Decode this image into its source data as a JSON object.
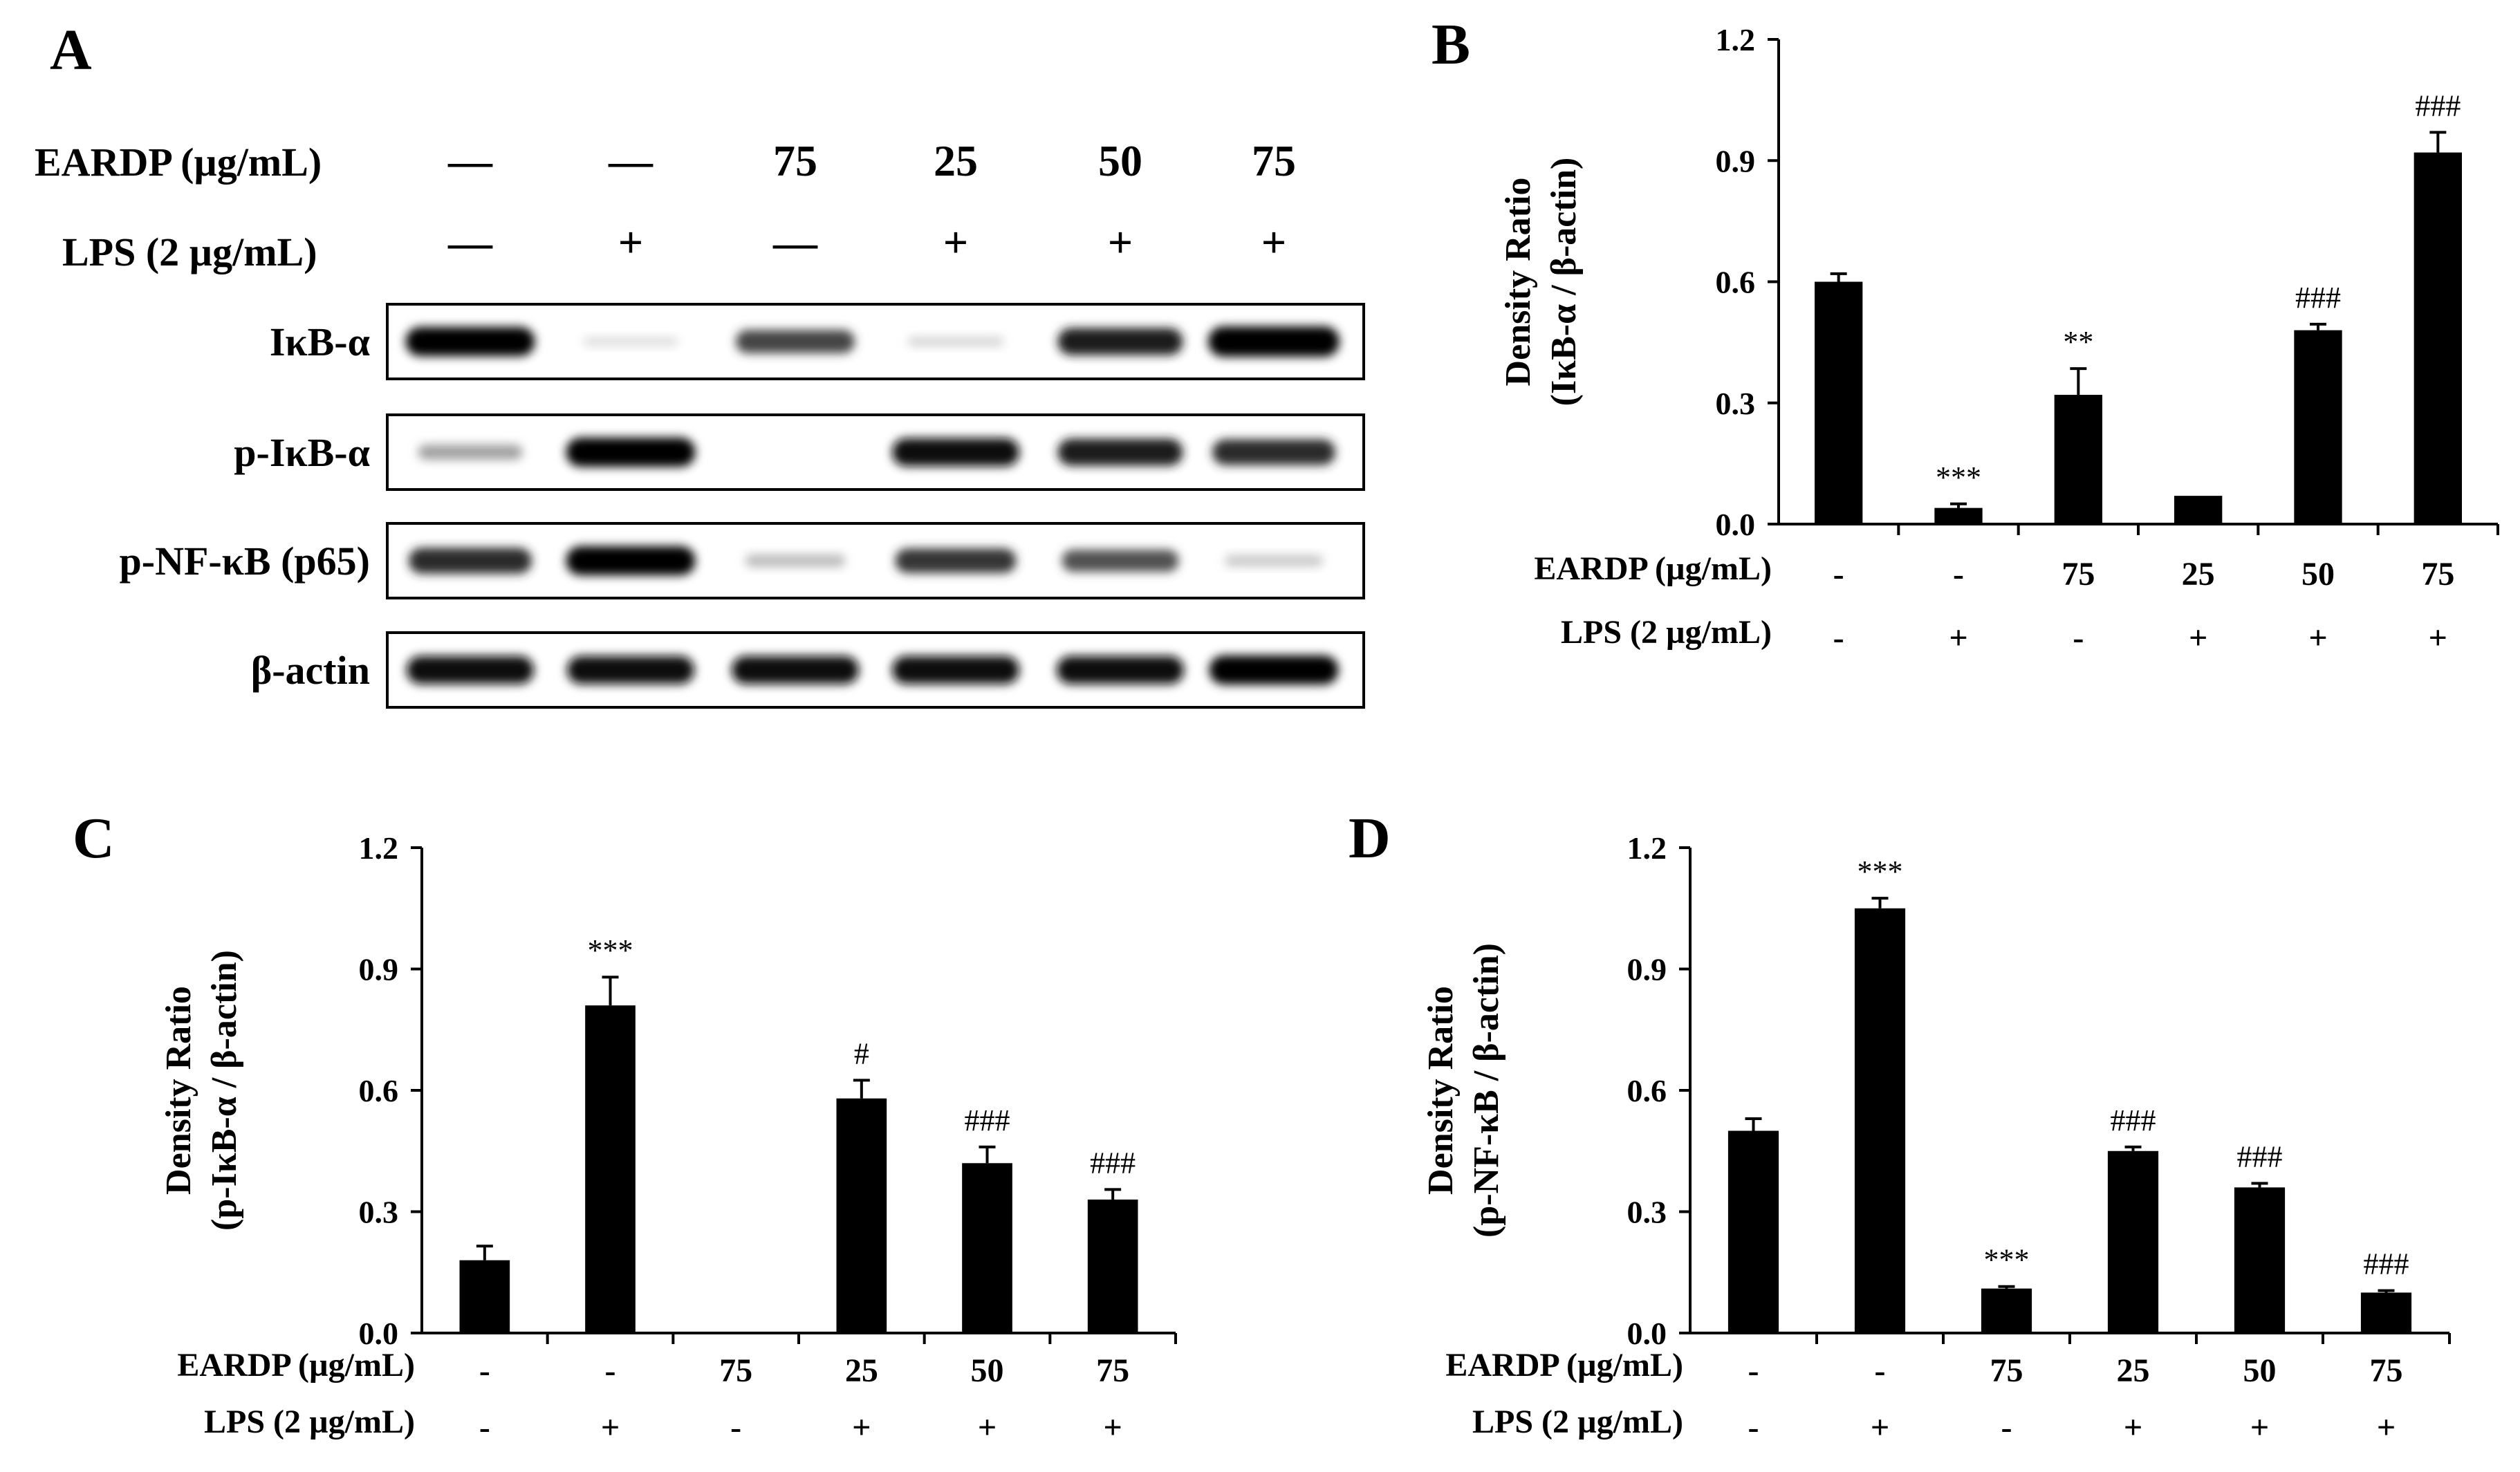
{
  "panels": {
    "A": {
      "letter": "A",
      "treatments": {
        "eardp_label": "EARDP (µg/mL)",
        "lps_label": "LPS (2  µg/mL)",
        "eardp": [
          "—",
          "—",
          "75",
          "25",
          "50",
          "75"
        ],
        "lps": [
          "—",
          "+",
          "—",
          "+",
          "+",
          "+"
        ]
      },
      "blots": [
        {
          "label": "IκB-α",
          "intensity": [
            0.95,
            0.12,
            0.7,
            0.15,
            0.85,
            1.0
          ]
        },
        {
          "label": "p-IκB-α",
          "intensity": [
            0.35,
            0.95,
            0.0,
            0.9,
            0.85,
            0.8
          ]
        },
        {
          "label": "p-NF-κB (p65)",
          "intensity": [
            0.8,
            0.95,
            0.25,
            0.75,
            0.65,
            0.2
          ]
        },
        {
          "label": "β-actin",
          "intensity": [
            0.9,
            0.9,
            0.9,
            0.9,
            0.9,
            0.95
          ]
        }
      ]
    }
  },
  "chart_data": [
    {
      "panel": "B",
      "type": "bar",
      "ylabel_line1": "Density  Ratio",
      "ylabel_line2": "(IκB-α / β-actin)",
      "ylim": [
        0,
        1.2
      ],
      "yticks": [
        "0.0",
        "0.3",
        "0.6",
        "0.9",
        "1.2"
      ],
      "values": [
        0.6,
        0.04,
        0.32,
        0.07,
        0.48,
        0.92
      ],
      "errors": [
        0.02,
        0.01,
        0.065,
        0.0,
        0.015,
        0.05
      ],
      "annotations": [
        "",
        "***",
        "**",
        "",
        "###",
        "###"
      ],
      "eardp_label": "EARDP (µg/mL)",
      "lps_label": "LPS (2 µg/mL)",
      "eardp": [
        "-",
        "-",
        "75",
        "25",
        "50",
        "75"
      ],
      "lps": [
        "-",
        "+",
        "-",
        "+",
        "+",
        "+"
      ],
      "color": "#000000"
    },
    {
      "panel": "C",
      "type": "bar",
      "ylabel_line1": "Density  Ratio",
      "ylabel_line2": "(p-IκB-α / β-actin)",
      "ylim": [
        0,
        1.2
      ],
      "yticks": [
        "0.0",
        "0.3",
        "0.6",
        "0.9",
        "1.2"
      ],
      "values": [
        0.18,
        0.81,
        0.0,
        0.58,
        0.42,
        0.33
      ],
      "errors": [
        0.035,
        0.07,
        0.0,
        0.045,
        0.04,
        0.025
      ],
      "annotations": [
        "",
        "***",
        "",
        "#",
        "###",
        "###"
      ],
      "eardp_label": "EARDP (µg/mL)",
      "lps_label": "LPS (2 µg/mL)",
      "eardp": [
        "-",
        "-",
        "75",
        "25",
        "50",
        "75"
      ],
      "lps": [
        "-",
        "+",
        "-",
        "+",
        "+",
        "+"
      ],
      "color": "#000000"
    },
    {
      "panel": "D",
      "type": "bar",
      "ylabel_line1": "Density  Ratio",
      "ylabel_line2": "(p-NF-κB / β-actin)",
      "ylim": [
        0,
        1.2
      ],
      "yticks": [
        "0.0",
        "0.3",
        "0.6",
        "0.9",
        "1.2"
      ],
      "values": [
        0.5,
        1.05,
        0.11,
        0.45,
        0.36,
        0.1
      ],
      "errors": [
        0.03,
        0.025,
        0.005,
        0.01,
        0.01,
        0.005
      ],
      "annotations": [
        "",
        "***",
        "***",
        "###",
        "###",
        "###"
      ],
      "eardp_label": "EARDP (µg/mL)",
      "lps_label": "LPS (2 µg/mL)",
      "eardp": [
        "-",
        "-",
        "75",
        "25",
        "50",
        "75"
      ],
      "lps": [
        "-",
        "+",
        "-",
        "+",
        "+",
        "+"
      ],
      "color": "#000000"
    }
  ]
}
